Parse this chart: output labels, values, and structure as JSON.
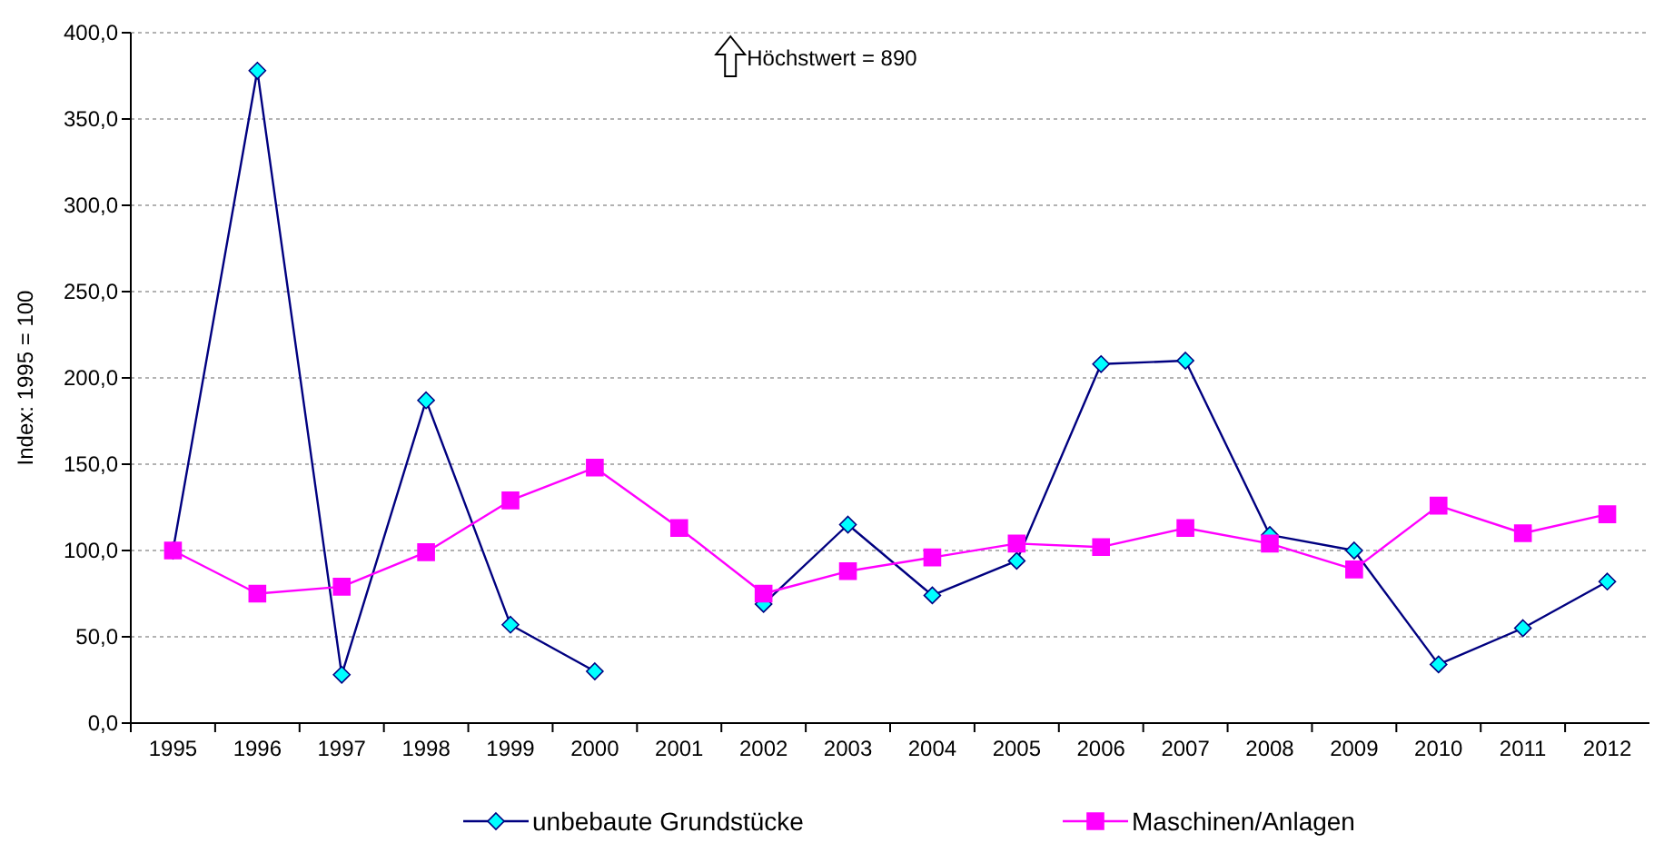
{
  "chart_data": {
    "type": "line",
    "ylabel": "Index: 1995 = 100",
    "categories": [
      "1995",
      "1996",
      "1997",
      "1998",
      "1999",
      "2000",
      "2001",
      "2002",
      "2003",
      "2004",
      "2005",
      "2006",
      "2007",
      "2008",
      "2009",
      "2010",
      "2011",
      "2012"
    ],
    "series": [
      {
        "name": "unbebaute Grundstücke",
        "color": "#000080",
        "marker": "diamond",
        "values": [
          100,
          378,
          28,
          187,
          57,
          30,
          null,
          69,
          115,
          74,
          94,
          208,
          210,
          109,
          100,
          34,
          55,
          82
        ]
      },
      {
        "name": "Maschinen/Anlagen",
        "color": "#ff00ff",
        "marker": "square",
        "values": [
          100,
          75,
          79,
          99,
          129,
          148,
          113,
          75,
          88,
          96,
          104,
          102,
          113,
          104,
          89,
          126,
          110,
          121
        ]
      }
    ],
    "ylim": [
      0,
      400
    ],
    "yticks": [
      {
        "value": 0,
        "label": "0,0"
      },
      {
        "value": 50,
        "label": "50,0"
      },
      {
        "value": 100,
        "label": "100,0"
      },
      {
        "value": 150,
        "label": "150,0"
      },
      {
        "value": 200,
        "label": "200,0"
      },
      {
        "value": 250,
        "label": "250,0"
      },
      {
        "value": 300,
        "label": "300,0"
      },
      {
        "value": 350,
        "label": "350,0"
      },
      {
        "value": 400,
        "label": "400,0"
      }
    ],
    "grid": "y",
    "legend": "bottom",
    "line_style": "solid",
    "annotations": [
      "Höchstwert = 890"
    ]
  }
}
